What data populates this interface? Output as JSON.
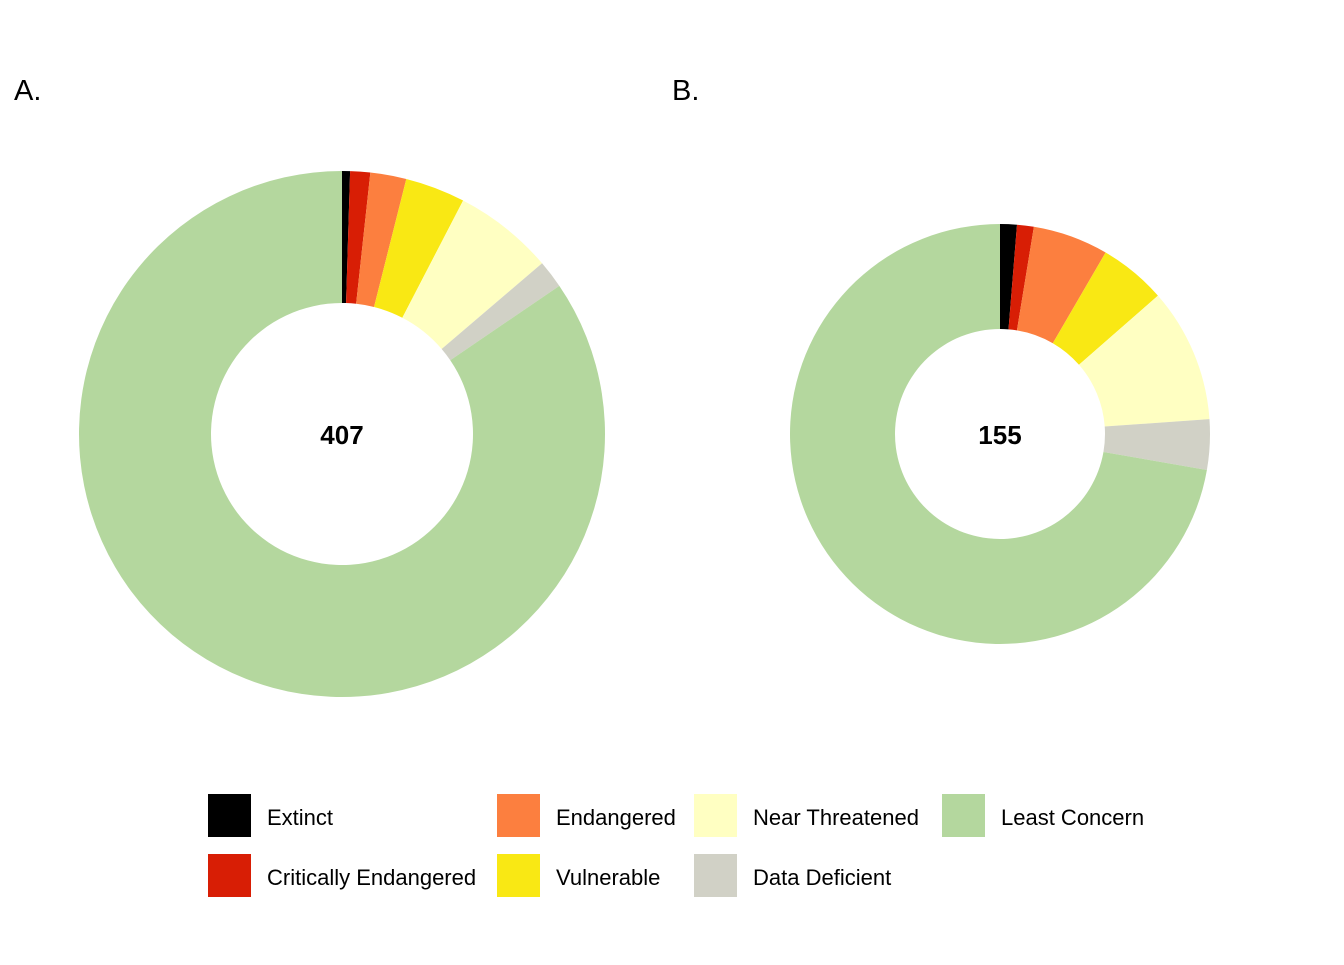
{
  "chart_data": [
    {
      "type": "pie",
      "variant": "donut",
      "panel_label": "A.",
      "center_label": "407",
      "categories": [
        "Extinct",
        "Critically Endangered",
        "Endangered",
        "Vulnerable",
        "Near Threatened",
        "Data Deficient",
        "Least Concern"
      ],
      "values": [
        2,
        5,
        9,
        15,
        25,
        7,
        344
      ]
    },
    {
      "type": "pie",
      "variant": "donut",
      "panel_label": "B.",
      "center_label": "155",
      "categories": [
        "Extinct",
        "Critically Endangered",
        "Endangered",
        "Vulnerable",
        "Near Threatened",
        "Data Deficient",
        "Least Concern"
      ],
      "values": [
        2,
        2,
        9,
        8,
        16,
        6,
        112
      ]
    }
  ],
  "legend": {
    "placement": "bottom",
    "items": [
      {
        "label": "Extinct",
        "color": "#000000"
      },
      {
        "label": "Critically Endangered",
        "color": "#D81E05"
      },
      {
        "label": "Endangered",
        "color": "#FC7F3F"
      },
      {
        "label": "Vulnerable",
        "color": "#F9E814"
      },
      {
        "label": "Near Threatened",
        "color": "#FFFFC2"
      },
      {
        "label": "Data Deficient",
        "color": "#D1D1C6"
      },
      {
        "label": "Least Concern",
        "color": "#B4D79E"
      }
    ]
  }
}
